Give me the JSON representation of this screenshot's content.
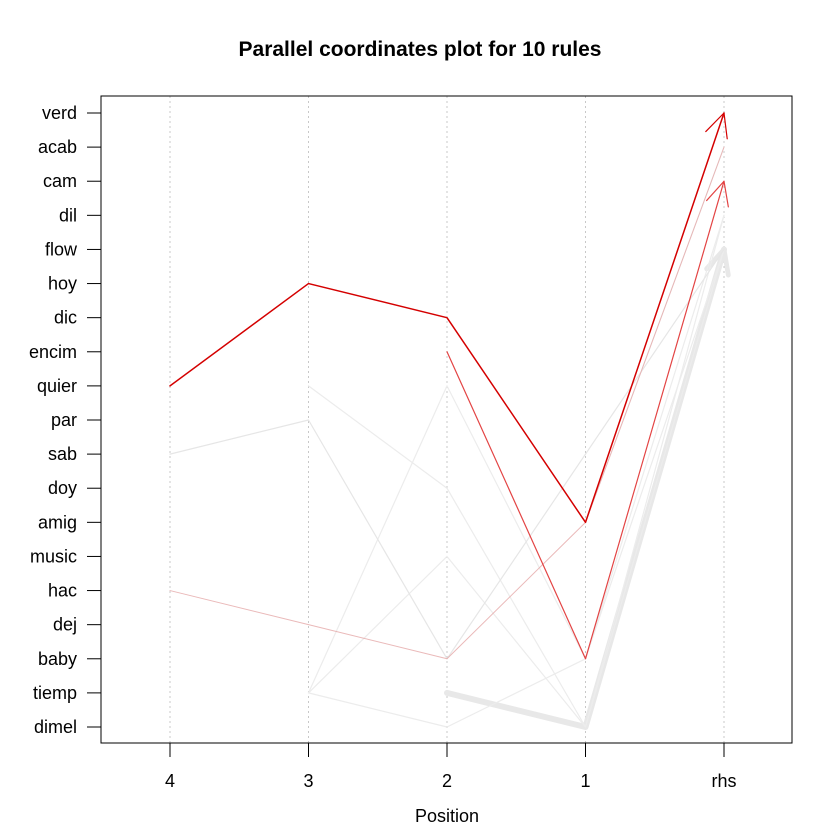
{
  "chart_data": {
    "type": "parallel-coordinates",
    "title": "Parallel coordinates plot for 10 rules",
    "xlabel": "Position",
    "x_categories": [
      "4",
      "3",
      "2",
      "1",
      "rhs"
    ],
    "y_categories": [
      "verd",
      "acab",
      "cam",
      "dil",
      "flow",
      "hoy",
      "dic",
      "encim",
      "quier",
      "par",
      "sab",
      "doy",
      "amig",
      "music",
      "hac",
      "dej",
      "baby",
      "tiemp",
      "dimel"
    ],
    "grid": "vertical dotted at each position",
    "rules": [
      {
        "items": {
          "4": "quier",
          "3": "hoy",
          "2": "dic",
          "1": "amig"
        },
        "rhs": "verd",
        "color": "#d40000",
        "opacity": 1.0,
        "width": 1.5,
        "arrow": true
      },
      {
        "items": {
          "2": "encim",
          "1": "baby"
        },
        "rhs": "cam",
        "color": "#e23a3a",
        "opacity": 0.95,
        "width": 1.2,
        "arrow": true
      },
      {
        "items": {
          "4": "hac",
          "3": "dej",
          "2": "baby",
          "1": "amig"
        },
        "rhs": "acab",
        "color": "#e5a8a8",
        "opacity": 0.8,
        "width": 1.0,
        "arrow": false
      },
      {
        "items": {
          "4": "sab",
          "3": "par",
          "2": "baby"
        },
        "rhs": "flow",
        "color": "#e6e6e6",
        "opacity": 1.0,
        "width": 1.2,
        "arrow": false
      },
      {
        "items": {
          "3": "quier",
          "2": "doy",
          "1": "dimel"
        },
        "rhs": "dil",
        "color": "#ececec",
        "opacity": 1.0,
        "width": 1.2,
        "arrow": false
      },
      {
        "items": {
          "3": "tiemp",
          "2": "quier",
          "1": "baby"
        },
        "rhs": "dil",
        "color": "#ececec",
        "opacity": 1.0,
        "width": 1.2,
        "arrow": false
      },
      {
        "items": {
          "3": "tiemp",
          "2": "music",
          "1": "dimel"
        },
        "rhs": "flow",
        "color": "#ececec",
        "opacity": 1.0,
        "width": 1.2,
        "arrow": false
      },
      {
        "items": {
          "3": "tiemp",
          "2": "dimel",
          "1": "baby"
        },
        "rhs": "flow",
        "color": "#ececec",
        "opacity": 1.0,
        "width": 1.2,
        "arrow": false
      },
      {
        "items": {
          "2": "tiemp",
          "1": "dimel"
        },
        "rhs": "flow",
        "color": "#e8e8e8",
        "opacity": 1.0,
        "width": 6,
        "arrow": true
      },
      {
        "items": {
          "1": "amig"
        },
        "rhs": "acab",
        "color": "#eeeeee",
        "opacity": 1.0,
        "width": 1.2,
        "arrow": false
      }
    ]
  }
}
